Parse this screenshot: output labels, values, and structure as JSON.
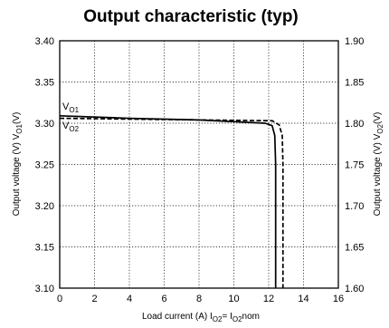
{
  "chart_data": {
    "type": "line",
    "title": "Output characteristic (typ)",
    "xlabel": {
      "prefix": "Load current (A) I",
      "sub1": "O2",
      "mid": "= I",
      "sub2": "O2",
      "suffix": "nom"
    },
    "ylabel_left": {
      "prefix": "Output voltage (V) V",
      "sub": "O1",
      "suffix": "(V)"
    },
    "ylabel_right": {
      "prefix": "Output voltage (V) V",
      "sub": "O2",
      "suffix": "(V)"
    },
    "xlim": [
      0,
      16
    ],
    "ylim_left": [
      3.1,
      3.4
    ],
    "ylim_right": [
      1.6,
      1.9
    ],
    "x_ticks": [
      "0",
      "2",
      "4",
      "6",
      "8",
      "10",
      "12",
      "14",
      "16"
    ],
    "y_ticks_left": [
      "3.10",
      "3.15",
      "3.20",
      "3.25",
      "3.30",
      "3.35",
      "3.40"
    ],
    "y_ticks_right": [
      "1.60",
      "1.65",
      "1.70",
      "1.75",
      "1.80",
      "1.85",
      "1.90"
    ],
    "grid": true,
    "series": [
      {
        "name": "VO1",
        "label_main": "V",
        "label_sub": "O1",
        "axis": "left",
        "style": "solid",
        "points": [
          [
            0,
            3.309
          ],
          [
            4,
            3.306
          ],
          [
            8,
            3.304
          ],
          [
            11.8,
            3.3
          ],
          [
            12.2,
            3.297
          ],
          [
            12.35,
            3.285
          ],
          [
            12.4,
            3.25
          ],
          [
            12.4,
            3.1
          ]
        ]
      },
      {
        "name": "VO2",
        "label_main": "V",
        "label_sub": "O2",
        "axis": "right",
        "style": "dashed",
        "points": [
          [
            0,
            1.806
          ],
          [
            4,
            1.805
          ],
          [
            8,
            1.804
          ],
          [
            12.2,
            1.803
          ],
          [
            12.6,
            1.798
          ],
          [
            12.78,
            1.785
          ],
          [
            12.82,
            1.75
          ],
          [
            12.82,
            1.6
          ]
        ]
      }
    ]
  }
}
